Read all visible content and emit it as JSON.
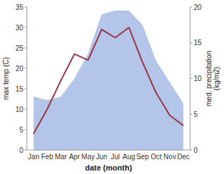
{
  "chart_data": {
    "type": "line",
    "categories": [
      "Jan",
      "Feb",
      "Mar",
      "Apr",
      "May",
      "Jun",
      "Jul",
      "Aug",
      "Sep",
      "Oct",
      "Nov",
      "Dec"
    ],
    "xlabel": "date (month)",
    "ylabel": "max temp (C)",
    "y2label": "med. precipitation\n(kg/m2)",
    "ylim": [
      0,
      35
    ],
    "yticks": [
      0,
      5,
      10,
      15,
      20,
      25,
      30,
      35
    ],
    "y2lim": [
      0,
      20
    ],
    "y2ticks": [
      0,
      5,
      10,
      15,
      20
    ],
    "series": [
      {
        "type": "area",
        "axis": "y2",
        "color": "#b3c5e8",
        "values": [
          7.5,
          7.0,
          7.5,
          10.0,
          13.5,
          19.0,
          19.5,
          19.5,
          17.5,
          12.5,
          9.5,
          6.5
        ]
      },
      {
        "type": "line",
        "color": "#993344",
        "values": [
          4.0,
          10.0,
          17.0,
          23.5,
          22.0,
          29.5,
          27.5,
          30.0,
          21.5,
          14.0,
          8.5,
          6.0
        ]
      }
    ]
  }
}
